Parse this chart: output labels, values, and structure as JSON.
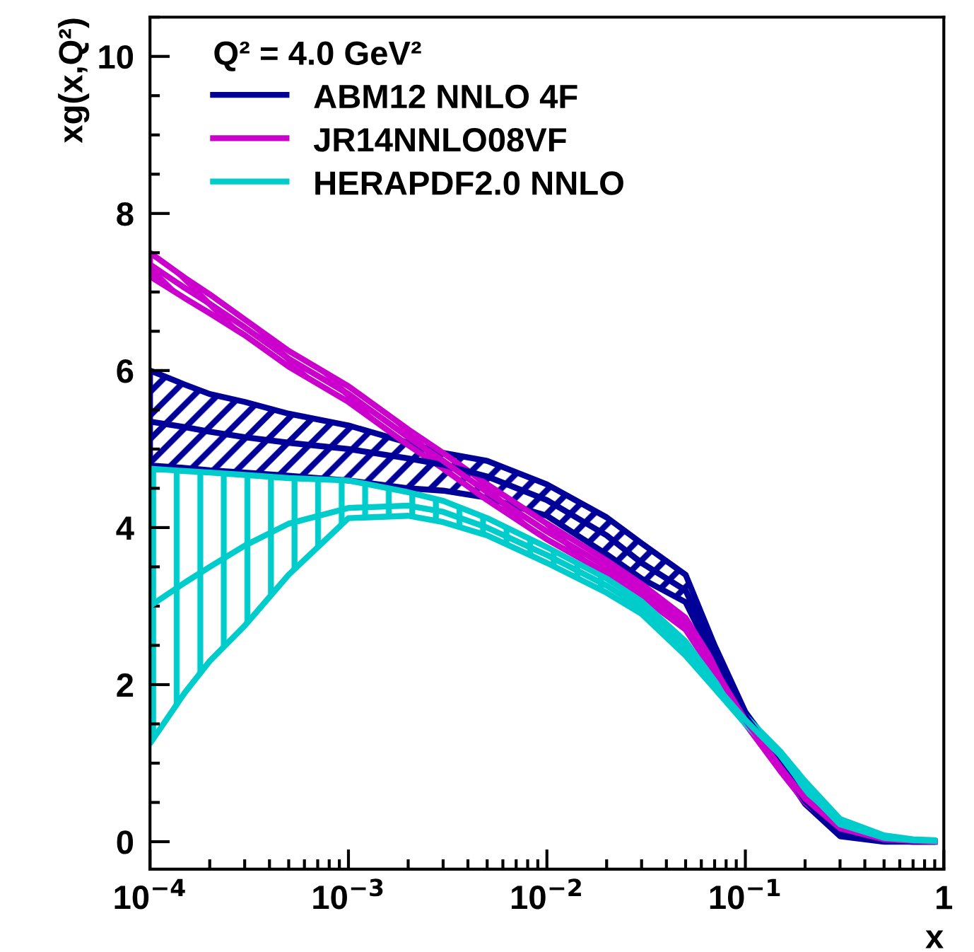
{
  "chart_data": {
    "type": "line",
    "legend_title": "Q² = 4.0 GeV²",
    "xlabel": "x",
    "ylabel": "xg(x,Q²)",
    "x": [
      0.0001,
      0.00015,
      0.0002,
      0.0003,
      0.0005,
      0.001,
      0.002,
      0.003,
      0.005,
      0.01,
      0.02,
      0.03,
      0.05,
      0.07,
      0.1,
      0.15,
      0.2,
      0.3,
      0.5,
      0.7,
      0.9
    ],
    "series": [
      {
        "name": "ABM12 NNLO 4F",
        "color": "#000099",
        "values": [
          5.35,
          5.28,
          5.22,
          5.15,
          5.08,
          5.0,
          4.88,
          4.8,
          4.65,
          4.35,
          3.9,
          3.55,
          3.2,
          2.4,
          1.6,
          1.0,
          0.52,
          0.1,
          0.01,
          0,
          0
        ],
        "lower": [
          4.79,
          4.76,
          4.73,
          4.7,
          4.66,
          4.6,
          4.5,
          4.47,
          4.38,
          4.15,
          3.66,
          3.35,
          3.05,
          2.3,
          1.55,
          0.95,
          0.48,
          0.07,
          0,
          0,
          0
        ],
        "upper": [
          6.0,
          5.82,
          5.7,
          5.6,
          5.45,
          5.3,
          5.08,
          4.95,
          4.85,
          4.55,
          4.13,
          3.8,
          3.4,
          2.5,
          1.65,
          1.05,
          0.56,
          0.13,
          0.02,
          0.01,
          0
        ]
      },
      {
        "name": "JR14NNLO08VF",
        "color": "#cc00cc",
        "values": [
          7.35,
          7.05,
          6.85,
          6.55,
          6.15,
          5.7,
          5.15,
          4.85,
          4.45,
          3.95,
          3.5,
          3.2,
          2.77,
          2.2,
          1.55,
          0.95,
          0.55,
          0.17,
          0.03,
          0.01,
          0
        ],
        "lower": [
          7.2,
          6.92,
          6.73,
          6.45,
          6.05,
          5.6,
          5.05,
          4.75,
          4.35,
          3.85,
          3.42,
          3.12,
          2.7,
          2.14,
          1.5,
          0.9,
          0.5,
          0.14,
          0.02,
          0,
          0
        ],
        "upper": [
          7.5,
          7.18,
          6.97,
          6.65,
          6.25,
          5.8,
          5.25,
          4.95,
          4.55,
          4.05,
          3.58,
          3.28,
          2.85,
          2.26,
          1.6,
          1.0,
          0.6,
          0.2,
          0.04,
          0.02,
          0.01
        ]
      },
      {
        "name": "HERAPDF2.0 NNLO",
        "color": "#00cccc",
        "values": [
          3.0,
          3.3,
          3.5,
          3.77,
          4.05,
          4.25,
          4.28,
          4.2,
          4.0,
          3.65,
          3.26,
          2.98,
          2.45,
          2.0,
          1.55,
          1.1,
          0.68,
          0.22,
          0.05,
          0.02,
          0.01
        ],
        "lower": [
          1.25,
          1.9,
          2.3,
          2.75,
          3.4,
          4.12,
          4.15,
          4.07,
          3.9,
          3.55,
          3.17,
          2.9,
          2.37,
          1.95,
          1.5,
          1.05,
          0.6,
          0.16,
          0.03,
          0.01,
          0
        ],
        "upper": [
          4.75,
          4.72,
          4.7,
          4.67,
          4.63,
          4.6,
          4.45,
          4.34,
          4.12,
          3.75,
          3.35,
          3.06,
          2.55,
          2.05,
          1.6,
          1.15,
          0.77,
          0.29,
          0.08,
          0.03,
          0.02
        ]
      }
    ],
    "log": "x",
    "xlim": [
      0.0001,
      1
    ],
    "ylim": [
      -0.35,
      10.5
    ],
    "xticks": [
      {
        "value": 0.0001,
        "label": "10$^{−4}$"
      },
      {
        "value": 0.001,
        "label": "10$^{−3}$"
      },
      {
        "value": 0.01,
        "label": "10$^{−2}$"
      },
      {
        "value": 0.1,
        "label": "10$^{−1}$"
      },
      1
    ],
    "yticks": [
      0,
      2,
      4,
      6,
      8,
      10
    ],
    "grid": false,
    "legend": "top left",
    "marker": "none",
    "line_style": "solid"
  }
}
